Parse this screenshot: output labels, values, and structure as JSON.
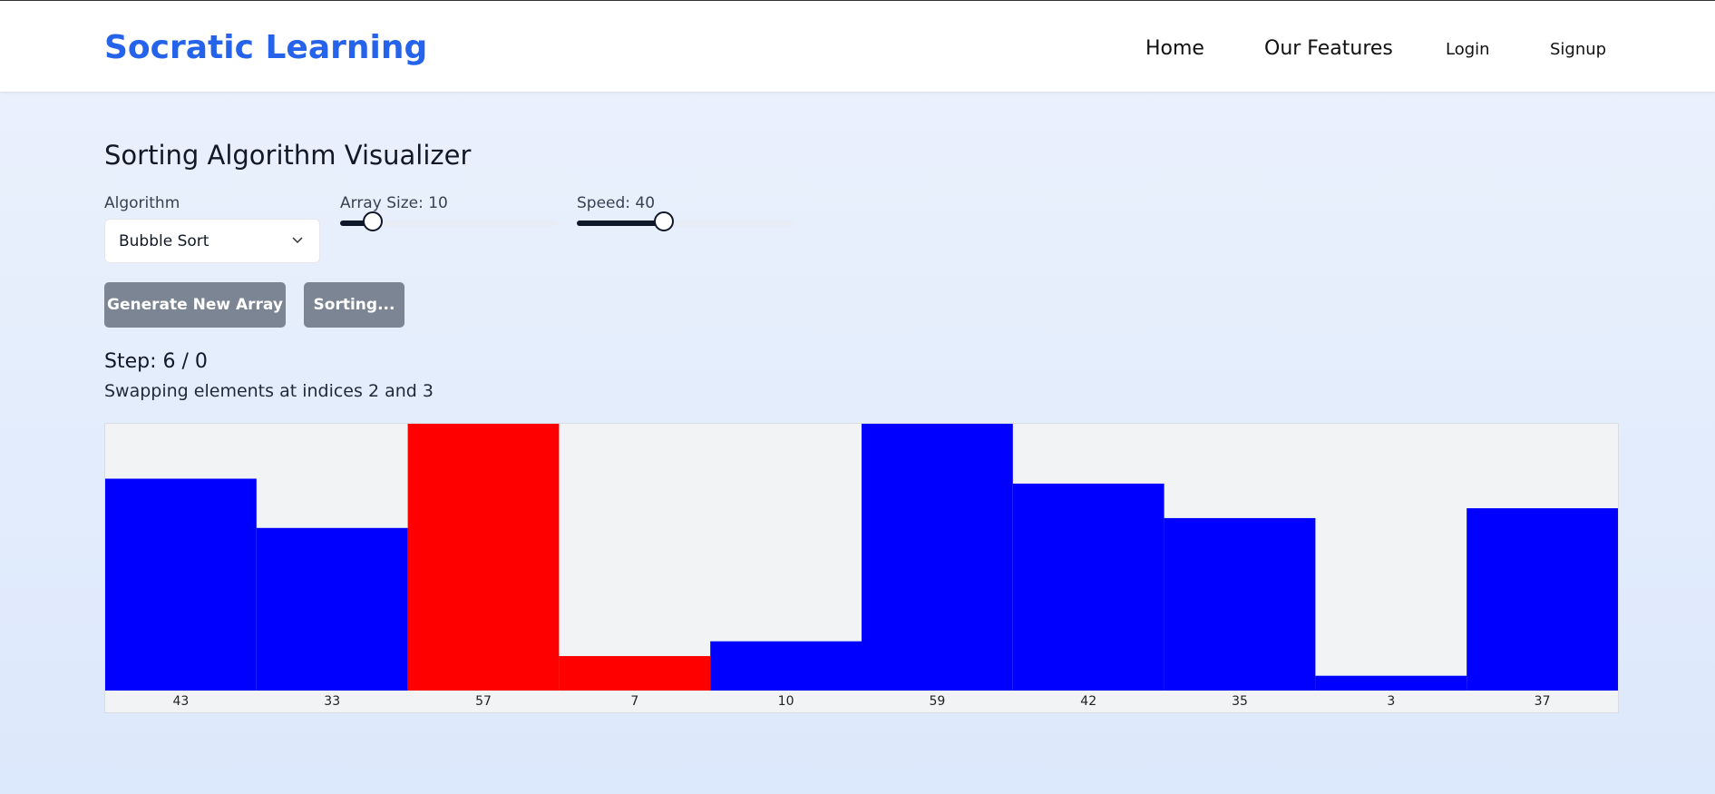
{
  "header": {
    "brand": "Socratic Learning",
    "nav": [
      "Home",
      "Our Features",
      "Login",
      "Signup"
    ]
  },
  "title": "Sorting Algorithm Visualizer",
  "controls": {
    "algorithm_label": "Algorithm",
    "algorithm": "Bubble Sort",
    "size_label": "Array Size: 10",
    "speed_label": "Speed: 40"
  },
  "buttons": [
    "Generate New Array",
    "Sorting..."
  ],
  "step": "Step: 6 / 0",
  "message": "Swapping elements at indices 2 and 3",
  "chart_data": {
    "type": "bar",
    "values": [
      43,
      33,
      57,
      7,
      10,
      59,
      42,
      35,
      3,
      37
    ],
    "colors": [
      "#0000ff",
      "#0000ff",
      "#ff0000",
      "#ff0000",
      "#0000ff",
      "#0000ff",
      "#0000ff",
      "#0000ff",
      "#0000ff",
      "#0000ff"
    ]
  }
}
